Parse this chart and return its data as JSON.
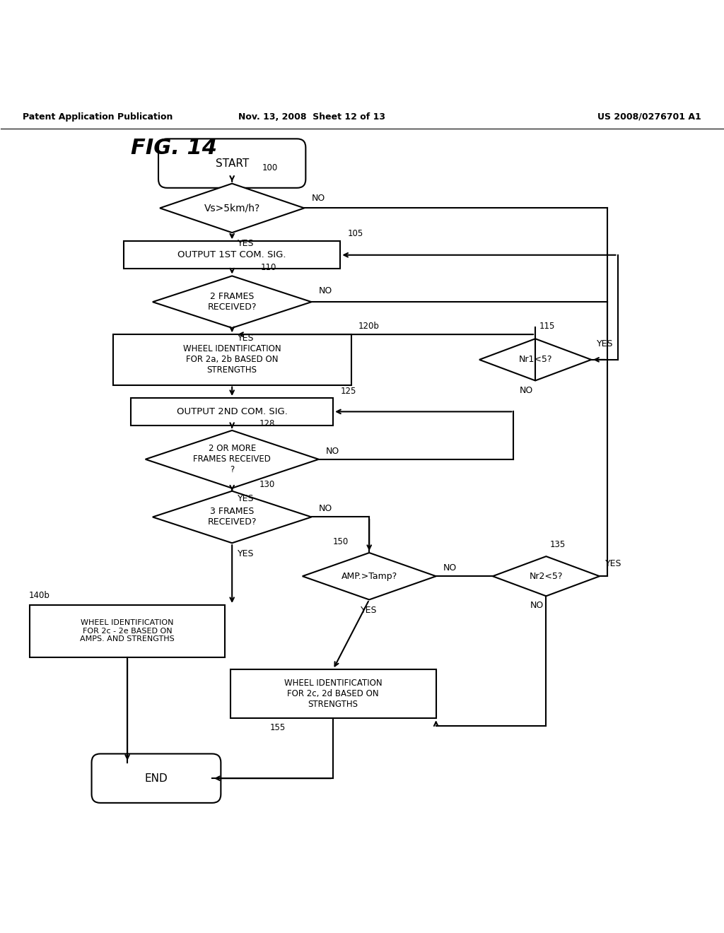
{
  "title": "FIG. 14",
  "header_left": "Patent Application Publication",
  "header_mid": "Nov. 13, 2008  Sheet 12 of 13",
  "header_right": "US 2008/0276701 A1",
  "bg_color": "#ffffff",
  "line_color": "#000000"
}
